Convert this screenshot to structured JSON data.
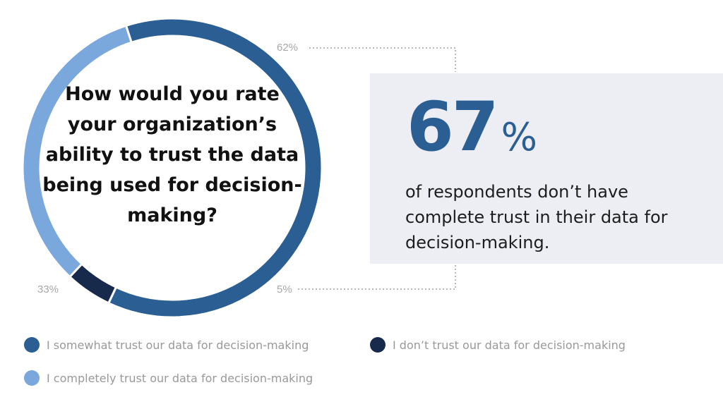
{
  "chart_data": {
    "type": "pie",
    "style": "donut",
    "title": "How would you rate your organization’s ability to trust the data being used for decision-making?",
    "categories": [
      "I somewhat trust our data for decision-making",
      "I don’t trust our data for decision-making",
      "I completely trust our data for decision-making"
    ],
    "values": [
      62,
      5,
      33
    ],
    "value_labels": [
      "62%",
      "5%",
      "33%"
    ],
    "colors": [
      "#2b5f93",
      "#172a4c",
      "#7aa7dc"
    ],
    "legend_position": "bottom"
  },
  "callout": {
    "number": "67",
    "percent_sign": "%",
    "text": "of respondents don’t have complete trust in their data for decision-making.",
    "background": "#eceef4"
  }
}
